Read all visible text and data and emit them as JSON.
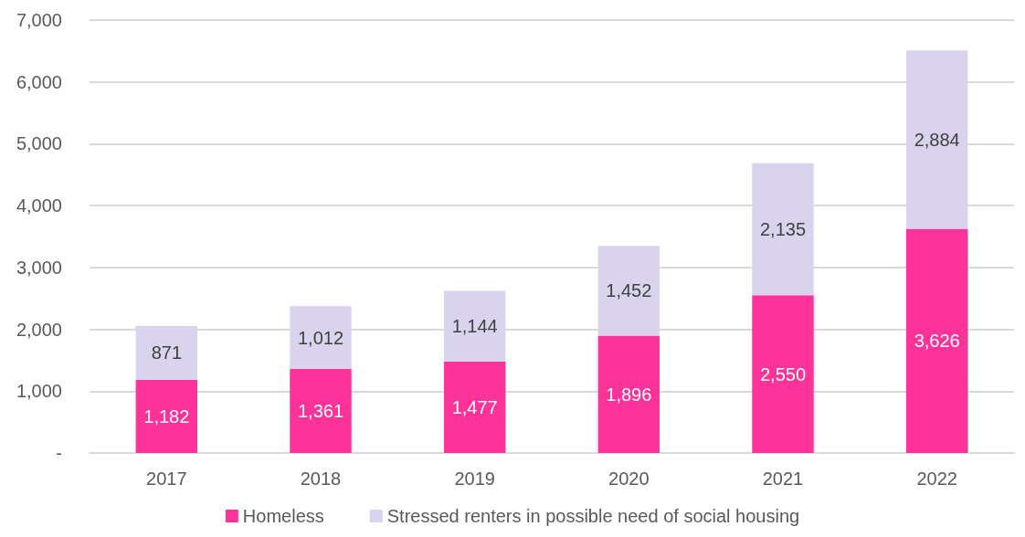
{
  "chart_data": {
    "type": "bar",
    "stacked": true,
    "categories": [
      "2017",
      "2018",
      "2019",
      "2020",
      "2021",
      "2022"
    ],
    "series": [
      {
        "name": "Homeless",
        "color": "#fe3399",
        "values": [
          1182,
          1361,
          1477,
          1896,
          2550,
          3626
        ],
        "value_labels": [
          "1,182",
          "1,361",
          "1,477",
          "1,896",
          "2,550",
          "3,626"
        ]
      },
      {
        "name": "Stressed renters in possible need of social housing",
        "color": "#d9d3ee",
        "values": [
          871,
          1012,
          1144,
          1452,
          2135,
          2884
        ],
        "value_labels": [
          "871",
          "1,012",
          "1,144",
          "1,452",
          "2,135",
          "2,884"
        ]
      }
    ],
    "ylim": [
      0,
      7000
    ],
    "yticks": [
      {
        "value": 0,
        "label": "-"
      },
      {
        "value": 1000,
        "label": "1,000"
      },
      {
        "value": 2000,
        "label": "2,000"
      },
      {
        "value": 3000,
        "label": "3,000"
      },
      {
        "value": 4000,
        "label": "4,000"
      },
      {
        "value": 5000,
        "label": "5,000"
      },
      {
        "value": 6000,
        "label": "6,000"
      },
      {
        "value": 7000,
        "label": "7,000"
      }
    ],
    "grid": "y",
    "legend": "bottom"
  }
}
